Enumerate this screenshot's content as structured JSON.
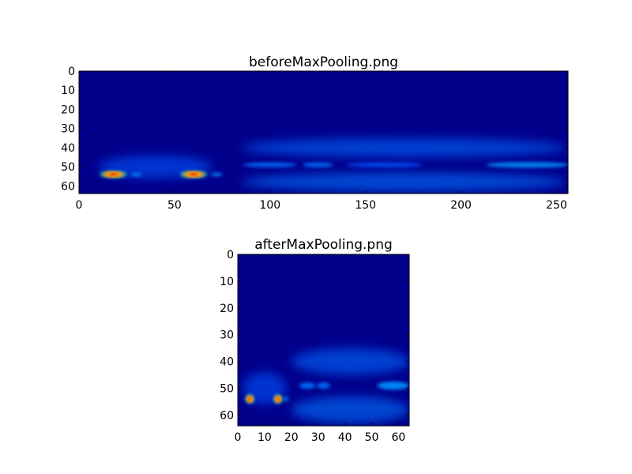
{
  "chart_data": [
    {
      "type": "heatmap",
      "title": "beforeMaxPooling.png",
      "colormap": "jet",
      "background_color": "#00008b",
      "xlim": [
        0,
        256
      ],
      "ylim": [
        64,
        0
      ],
      "xticks": [
        0,
        50,
        100,
        150,
        200,
        250
      ],
      "yticks": [
        0,
        10,
        20,
        30,
        40,
        50,
        60
      ],
      "xlabel": "",
      "ylabel": "",
      "features": [
        {
          "x": 18,
          "y": 54,
          "rx": 7,
          "ry": 1.6,
          "intensity": 1.0
        },
        {
          "x": 60,
          "y": 54,
          "rx": 7,
          "ry": 1.6,
          "intensity": 1.0
        },
        {
          "x": 30,
          "y": 54,
          "rx": 3,
          "ry": 1,
          "intensity": 0.45
        },
        {
          "x": 72,
          "y": 54,
          "rx": 3,
          "ry": 1,
          "intensity": 0.45
        },
        {
          "x": 100,
          "y": 49,
          "rx": 14,
          "ry": 1.2,
          "intensity": 0.4
        },
        {
          "x": 125,
          "y": 49,
          "rx": 8,
          "ry": 1.2,
          "intensity": 0.4
        },
        {
          "x": 160,
          "y": 49,
          "rx": 20,
          "ry": 1.2,
          "intensity": 0.28
        },
        {
          "x": 235,
          "y": 49,
          "rx": 22,
          "ry": 1.4,
          "intensity": 0.5
        },
        {
          "x": 170,
          "y": 40,
          "rx": 85,
          "ry": 5,
          "intensity": 0.18
        },
        {
          "x": 170,
          "y": 58,
          "rx": 85,
          "ry": 5,
          "intensity": 0.2
        },
        {
          "x": 40,
          "y": 50,
          "rx": 30,
          "ry": 6,
          "intensity": 0.15
        }
      ]
    },
    {
      "type": "heatmap",
      "title": "afterMaxPooling.png",
      "colormap": "jet",
      "background_color": "#00008b",
      "xlim": [
        0,
        64
      ],
      "ylim": [
        64,
        0
      ],
      "xticks": [
        0,
        10,
        20,
        30,
        40,
        50,
        60
      ],
      "yticks": [
        0,
        10,
        20,
        30,
        40,
        50,
        60
      ],
      "xlabel": "",
      "ylabel": "",
      "features": [
        {
          "x": 4.5,
          "y": 54,
          "rx": 1.5,
          "ry": 1.5,
          "intensity": 1.0
        },
        {
          "x": 15,
          "y": 54,
          "rx": 1.5,
          "ry": 1.5,
          "intensity": 1.0
        },
        {
          "x": 18,
          "y": 54,
          "rx": 1,
          "ry": 0.8,
          "intensity": 0.45
        },
        {
          "x": 26,
          "y": 49,
          "rx": 3,
          "ry": 1.2,
          "intensity": 0.4
        },
        {
          "x": 32,
          "y": 49,
          "rx": 2.5,
          "ry": 1.2,
          "intensity": 0.38
        },
        {
          "x": 58,
          "y": 49,
          "rx": 6,
          "ry": 1.5,
          "intensity": 0.5
        },
        {
          "x": 42,
          "y": 40,
          "rx": 22,
          "ry": 5,
          "intensity": 0.18
        },
        {
          "x": 42,
          "y": 58,
          "rx": 22,
          "ry": 5,
          "intensity": 0.2
        },
        {
          "x": 10,
          "y": 50,
          "rx": 8,
          "ry": 6,
          "intensity": 0.15
        }
      ]
    }
  ]
}
